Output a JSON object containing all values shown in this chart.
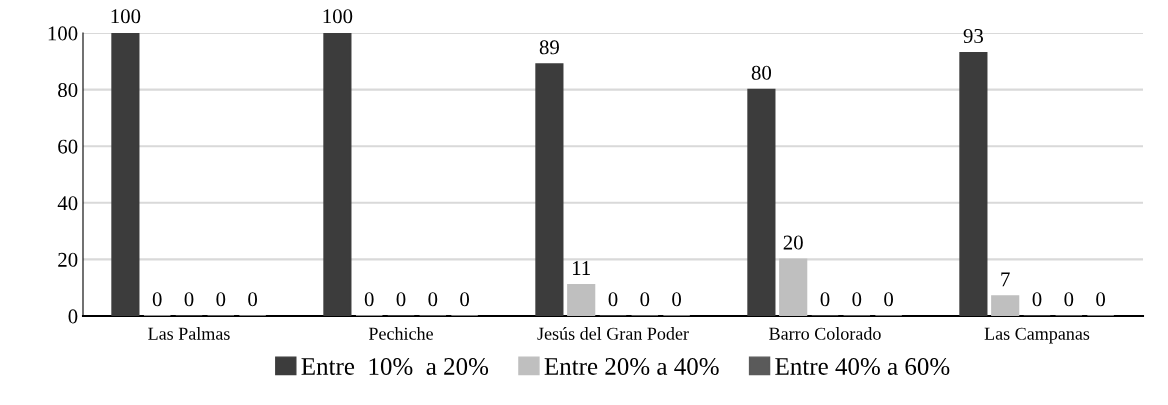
{
  "chart_data": {
    "type": "bar",
    "categories": [
      "Las Palmas",
      "Pechiche",
      "Jesús del Gran Poder",
      "Barro Colorado",
      "Las Campanas"
    ],
    "series": [
      {
        "name": "Entre  10%  a 20%",
        "color": "#3c3c3c",
        "values": [
          100,
          100,
          89,
          80,
          93
        ]
      },
      {
        "name": "Entre 20% a 40%",
        "color": "#bfbfbf",
        "values": [
          0,
          0,
          11,
          20,
          7
        ]
      },
      {
        "name": "Entre 40% a 60%",
        "color": "#5a5a5a",
        "values": [
          0,
          0,
          0,
          0,
          0
        ]
      },
      {
        "color": "#7f7f7f",
        "values": [
          0,
          0,
          0,
          0,
          0
        ]
      },
      {
        "color": "#a5a5a5",
        "values": [
          0,
          0,
          0,
          0,
          0
        ]
      }
    ],
    "ylim": [
      0,
      100
    ],
    "yticks": [
      0,
      20,
      40,
      60,
      80,
      100
    ],
    "grid": "y",
    "legend": "bottom",
    "data_labels": true
  }
}
